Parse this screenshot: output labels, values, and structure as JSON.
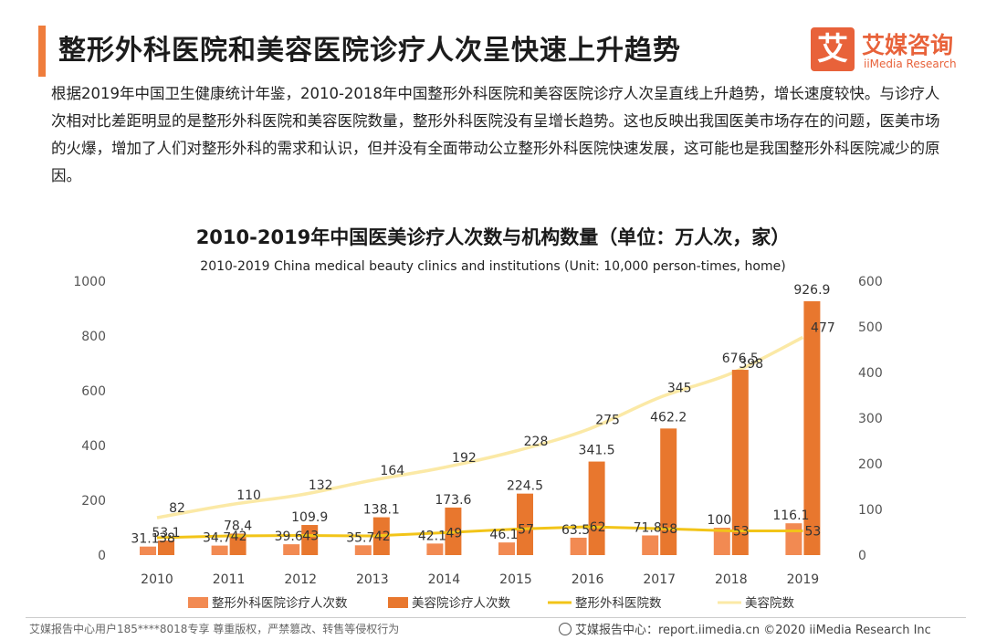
{
  "header": {
    "title": "整形外科医院和美容医院诊疗人次呈快速上升趋势",
    "logo_mark": "艾",
    "logo_cn": "艾媒咨询",
    "logo_en": "iiMedia Research"
  },
  "description": "根据2019年中国卫生健康统计年鉴，2010-2018年中国整形外科医院和美容医院诊疗人次呈直线上升趋势，增长速度较快。与诊疗人次相对比差距明显的是整形外科医院和美容医院数量，整形外科医院没有呈增长趋势。这也反映出我国医美市场存在的问题，医美市场的火爆，增加了人们对整形外科的需求和认识，但并没有全面带动公立整形外科医院快速发展，这可能也是我国整形外科医院减少的原因。",
  "footer": {
    "left": "艾媒报告中心用户185****8018专享 尊重版权，严禁篡改、转售等侵权行为",
    "right": "艾媒报告中心：report.iimedia.cn   ©2020  iiMedia Research  Inc"
  },
  "chart_data": {
    "type": "bar",
    "title": "2010-2019年中国医美诊疗人次数与机构数量（单位：万人次，家）",
    "subtitle": "2010-2019 China medical beauty clinics and institutions (Unit: 10,000 person-times, home)",
    "categories": [
      "2010",
      "2011",
      "2012",
      "2013",
      "2014",
      "2015",
      "2016",
      "2017",
      "2018",
      "2019"
    ],
    "ylim_left": [
      0,
      1000
    ],
    "yticks_left": [
      "0",
      "200",
      "400",
      "600",
      "800",
      "1000"
    ],
    "ylim_right": [
      0,
      600
    ],
    "yticks_right": [
      "0",
      "100",
      "200",
      "300",
      "400",
      "500",
      "600"
    ],
    "grid": false,
    "legend_position": "bottom",
    "series": [
      {
        "name": "整形外科医院诊疗人次数",
        "type": "bar",
        "axis": "left",
        "color": "#f28a52",
        "values": [
          31.1,
          34.7,
          39.6,
          35.7,
          42.1,
          46.1,
          63.5,
          71.8,
          100,
          116.1
        ],
        "labels": [
          "31.1",
          "34.7",
          "39.6",
          "35.7",
          "42.1",
          "46.1",
          "63.5",
          "71.8",
          "100",
          "116.1"
        ]
      },
      {
        "name": "美容院诊疗人次数",
        "type": "bar",
        "axis": "left",
        "color": "#e8772e",
        "values": [
          53.1,
          78.4,
          109.9,
          138.1,
          173.6,
          224.5,
          341.5,
          462.2,
          676.5,
          926.9
        ],
        "labels": [
          "53.1",
          "78.4",
          "109.9",
          "138.1",
          "173.6",
          "224.5",
          "341.5",
          "462.2",
          "676.5",
          "926.9"
        ]
      },
      {
        "name": "整形外科医院数",
        "type": "line",
        "axis": "right",
        "color": "#f2c418",
        "values": [
          38,
          42,
          43,
          42,
          49,
          57,
          62,
          58,
          53,
          53
        ],
        "labels": [
          "38",
          "42",
          "43",
          "42",
          "49",
          "57",
          "62",
          "58",
          "53",
          "53"
        ]
      },
      {
        "name": "美容院数",
        "type": "line",
        "axis": "right",
        "color": "#fbe9a6",
        "values": [
          82,
          110,
          132,
          164,
          192,
          228,
          275,
          345,
          398,
          477
        ],
        "labels": [
          "82",
          "110",
          "132",
          "164",
          "192",
          "228",
          "275",
          "345",
          "398",
          "477"
        ]
      }
    ]
  }
}
